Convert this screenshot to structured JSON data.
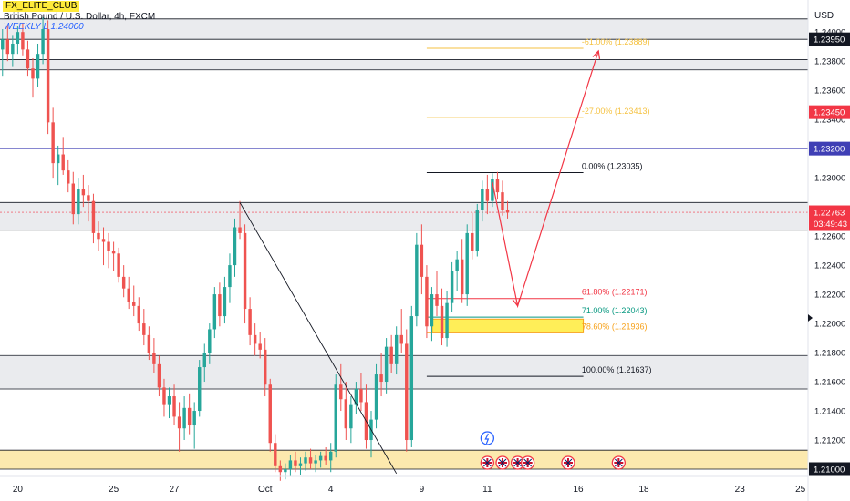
{
  "header": {
    "badge": "FX_ELITE_CLUB",
    "symbol": "British Pound / U.S. Dollar, 4h, FXCM",
    "weekly_label": "WEEKLY L 1.24000"
  },
  "currency": "USD",
  "colors": {
    "up": "#26a69a",
    "down": "#ef5350",
    "zone_gray": "#e3e4e8",
    "zone_yellow": "#fbe5a0",
    "fib_gold": "#f5c242",
    "fib_red": "#f23645",
    "fib_green": "#089981",
    "fib_orange": "#f7a21b",
    "arrow": "#f23645",
    "blue_line": "#3f3fb5"
  },
  "chart_data": {
    "type": "candlestick",
    "ylim": [
      1.2095,
      1.2422
    ],
    "y_ticks": [
      1.21,
      1.212,
      1.214,
      1.216,
      1.218,
      1.22,
      1.222,
      1.224,
      1.226,
      1.228,
      1.23,
      1.232,
      1.234,
      1.236,
      1.238,
      1.24
    ],
    "y_tick_labels": [
      "1.21000",
      "1.21200",
      "1.21400",
      "1.21600",
      "1.21800",
      "1.22000",
      "1.22200",
      "1.22400",
      "1.22600",
      "",
      "1.23000",
      "1.23200",
      "1.23400",
      "1.23600",
      "1.23800",
      "1.24000"
    ],
    "x_ticks": [
      {
        "label": "20",
        "bar": 3
      },
      {
        "label": "25",
        "bar": 22
      },
      {
        "label": "27",
        "bar": 34
      },
      {
        "label": "Oct",
        "bar": 52
      },
      {
        "label": "4",
        "bar": 65
      },
      {
        "label": "9",
        "bar": 83
      },
      {
        "label": "11",
        "bar": 96
      },
      {
        "label": "16",
        "bar": 114
      },
      {
        "label": "18",
        "bar": 127
      },
      {
        "label": "23",
        "bar": 146
      },
      {
        "label": "25",
        "bar": 158
      }
    ],
    "bars_total": 160,
    "price_tags": [
      {
        "value": 1.2395,
        "label": "1.23950",
        "color": "#131722"
      },
      {
        "value": 1.2345,
        "label": "1.23450",
        "color": "#f23645"
      },
      {
        "value": 1.232,
        "label": "1.23200",
        "color": "#3f3fb5"
      },
      {
        "value": 1.22763,
        "label": "1.22763",
        "sub": "03:49:43",
        "color": "#f23645"
      },
      {
        "value": 1.21,
        "label": "1.21000",
        "color": "#131722"
      }
    ],
    "zones": [
      {
        "top": 1.2409,
        "bottom": 1.2395,
        "kind": "gray"
      },
      {
        "top": 1.2381,
        "bottom": 1.2374,
        "kind": "gray"
      },
      {
        "top": 1.2283,
        "bottom": 1.2264,
        "kind": "gray"
      },
      {
        "top": 1.2178,
        "bottom": 1.2155,
        "kind": "gray"
      },
      {
        "top": 1.2113,
        "bottom": 1.21,
        "kind": "yellow"
      }
    ],
    "horizontal_lines": [
      {
        "value": 1.232,
        "color": "#3f3fb5"
      }
    ],
    "fib_levels": [
      {
        "label": "-61.00% (1.23889)",
        "value": 1.23889,
        "color": "#f5c242"
      },
      {
        "label": "-27.00% (1.23413)",
        "value": 1.23413,
        "color": "#f5c242"
      },
      {
        "label": "0.00% (1.23035)",
        "value": 1.23035,
        "color": "#131722"
      },
      {
        "label": "61.80% (1.22171)",
        "value": 1.22171,
        "color": "#f23645"
      },
      {
        "label": "71.00% (1.22043)",
        "value": 1.22043,
        "color": "#089981"
      },
      {
        "label": "78.60% (1.21936)",
        "value": 1.21936,
        "color": "#f7a21b"
      },
      {
        "label": "100.00% (1.21637)",
        "value": 1.21637,
        "color": "#131722"
      }
    ],
    "fib_box": {
      "top": 1.2203,
      "bottom": 1.21936
    },
    "trendline": [
      {
        "bar": 47,
        "value": 1.2283
      },
      {
        "bar": 78,
        "value": 1.2097
      }
    ],
    "projection": [
      {
        "bar": 97,
        "value": 1.2297
      },
      {
        "bar": 102,
        "value": 1.2212
      },
      {
        "bar": 118,
        "value": 1.2387
      }
    ],
    "events": [
      {
        "bar": 96,
        "kind": "lightning"
      },
      {
        "bar": 96,
        "kind": "flag"
      },
      {
        "bar": 99,
        "kind": "flag"
      },
      {
        "bar": 102,
        "kind": "flag"
      },
      {
        "bar": 104,
        "kind": "flag"
      },
      {
        "bar": 112,
        "kind": "flag"
      },
      {
        "bar": 122,
        "kind": "flag"
      }
    ],
    "candles": [
      [
        1.2388,
        1.2402,
        1.237,
        1.2395
      ],
      [
        1.2395,
        1.2405,
        1.238,
        1.2385
      ],
      [
        1.2385,
        1.2398,
        1.2376,
        1.2392
      ],
      [
        1.2392,
        1.2404,
        1.2385,
        1.24
      ],
      [
        1.24,
        1.2406,
        1.2384,
        1.2388
      ],
      [
        1.2388,
        1.2394,
        1.237,
        1.2375
      ],
      [
        1.2375,
        1.2382,
        1.2355,
        1.2368
      ],
      [
        1.2368,
        1.2392,
        1.2362,
        1.2385
      ],
      [
        1.2385,
        1.241,
        1.2378,
        1.2402
      ],
      [
        1.2402,
        1.2408,
        1.233,
        1.2338
      ],
      [
        1.2338,
        1.2348,
        1.23,
        1.231
      ],
      [
        1.231,
        1.2322,
        1.2295,
        1.2316
      ],
      [
        1.2316,
        1.2328,
        1.2302,
        1.2305
      ],
      [
        1.2305,
        1.2312,
        1.229,
        1.2296
      ],
      [
        1.2296,
        1.2304,
        1.2268,
        1.2275
      ],
      [
        1.2275,
        1.23,
        1.2268,
        1.2292
      ],
      [
        1.2292,
        1.2302,
        1.228,
        1.2288
      ],
      [
        1.2288,
        1.2295,
        1.227,
        1.2284
      ],
      [
        1.2284,
        1.2289,
        1.2255,
        1.2262
      ],
      [
        1.2262,
        1.227,
        1.225,
        1.2258
      ],
      [
        1.2258,
        1.2266,
        1.224,
        1.2256
      ],
      [
        1.2256,
        1.2262,
        1.2238,
        1.225
      ],
      [
        1.225,
        1.2256,
        1.2236,
        1.2248
      ],
      [
        1.2248,
        1.2252,
        1.2228,
        1.2232
      ],
      [
        1.2232,
        1.224,
        1.2218,
        1.2224
      ],
      [
        1.2224,
        1.2232,
        1.221,
        1.2215
      ],
      [
        1.2215,
        1.2226,
        1.2205,
        1.2212
      ],
      [
        1.2212,
        1.2218,
        1.2195,
        1.22
      ],
      [
        1.22,
        1.221,
        1.2185,
        1.2192
      ],
      [
        1.2192,
        1.2198,
        1.2175,
        1.218
      ],
      [
        1.218,
        1.219,
        1.2166,
        1.2172
      ],
      [
        1.2172,
        1.2178,
        1.215,
        1.2156
      ],
      [
        1.2156,
        1.2162,
        1.2136,
        1.2144
      ],
      [
        1.2144,
        1.2156,
        1.2135,
        1.215
      ],
      [
        1.215,
        1.2158,
        1.213,
        1.2136
      ],
      [
        1.2136,
        1.2146,
        1.2112,
        1.2128
      ],
      [
        1.2128,
        1.215,
        1.212,
        1.2142
      ],
      [
        1.2142,
        1.2152,
        1.2124,
        1.213
      ],
      [
        1.213,
        1.2146,
        1.2114,
        1.214
      ],
      [
        1.214,
        1.2175,
        1.2136,
        1.217
      ],
      [
        1.217,
        1.2186,
        1.216,
        1.218
      ],
      [
        1.218,
        1.22,
        1.2172,
        1.2196
      ],
      [
        1.2196,
        1.2225,
        1.219,
        1.222
      ],
      [
        1.222,
        1.2228,
        1.2198,
        1.2205
      ],
      [
        1.2205,
        1.2232,
        1.22,
        1.2225
      ],
      [
        1.2225,
        1.2248,
        1.2214,
        1.224
      ],
      [
        1.224,
        1.2272,
        1.2232,
        1.2266
      ],
      [
        1.2266,
        1.2284,
        1.2258,
        1.2262
      ],
      [
        1.2262,
        1.2268,
        1.22,
        1.221
      ],
      [
        1.221,
        1.2218,
        1.2185,
        1.2192
      ],
      [
        1.2192,
        1.22,
        1.2178,
        1.2186
      ],
      [
        1.2186,
        1.2194,
        1.2176,
        1.2182
      ],
      [
        1.2182,
        1.219,
        1.215,
        1.2158
      ],
      [
        1.2158,
        1.2162,
        1.2112,
        1.2118
      ],
      [
        1.2118,
        1.2124,
        1.2098,
        1.2102
      ],
      [
        1.2102,
        1.2106,
        1.2092,
        1.2098
      ],
      [
        1.2098,
        1.2104,
        1.2093,
        1.21
      ],
      [
        1.21,
        1.211,
        1.2095,
        1.2106
      ],
      [
        1.2106,
        1.2112,
        1.2098,
        1.2102
      ],
      [
        1.2102,
        1.2108,
        1.2096,
        1.2104
      ],
      [
        1.2104,
        1.2112,
        1.2099,
        1.2108
      ],
      [
        1.2108,
        1.2114,
        1.21,
        1.2104
      ],
      [
        1.2104,
        1.211,
        1.2098,
        1.2106
      ],
      [
        1.2106,
        1.2112,
        1.2101,
        1.2109
      ],
      [
        1.2109,
        1.2115,
        1.2103,
        1.2106
      ],
      [
        1.2106,
        1.2118,
        1.2098,
        1.2112
      ],
      [
        1.2112,
        1.2165,
        1.2108,
        1.2158
      ],
      [
        1.2158,
        1.2172,
        1.214,
        1.2148
      ],
      [
        1.2148,
        1.216,
        1.212,
        1.2128
      ],
      [
        1.2128,
        1.215,
        1.2118,
        1.2144
      ],
      [
        1.2144,
        1.216,
        1.2138,
        1.2155
      ],
      [
        1.2155,
        1.2166,
        1.214,
        1.2146
      ],
      [
        1.2146,
        1.2158,
        1.2114,
        1.212
      ],
      [
        1.212,
        1.214,
        1.2108,
        1.2134
      ],
      [
        1.2134,
        1.2172,
        1.2128,
        1.2165
      ],
      [
        1.2165,
        1.218,
        1.215,
        1.216
      ],
      [
        1.216,
        1.219,
        1.2152,
        1.2184
      ],
      [
        1.2184,
        1.2192,
        1.2166,
        1.2172
      ],
      [
        1.2172,
        1.2198,
        1.2165,
        1.2192
      ],
      [
        1.2192,
        1.221,
        1.218,
        1.2186
      ],
      [
        1.2186,
        1.2196,
        1.2112,
        1.212
      ],
      [
        1.212,
        1.2212,
        1.2115,
        1.2205
      ],
      [
        1.2205,
        1.2262,
        1.2198,
        1.2254
      ],
      [
        1.2254,
        1.2268,
        1.222,
        1.2232
      ],
      [
        1.2232,
        1.224,
        1.219,
        1.2198
      ],
      [
        1.2198,
        1.2225,
        1.2188,
        1.222
      ],
      [
        1.222,
        1.2236,
        1.2205,
        1.2212
      ],
      [
        1.2212,
        1.2224,
        1.2185,
        1.219
      ],
      [
        1.219,
        1.2222,
        1.2184,
        1.2214
      ],
      [
        1.2214,
        1.2242,
        1.2208,
        1.2236
      ],
      [
        1.2236,
        1.225,
        1.2222,
        1.2244
      ],
      [
        1.2244,
        1.2258,
        1.2214,
        1.222
      ],
      [
        1.222,
        1.2268,
        1.2212,
        1.2262
      ],
      [
        1.2262,
        1.2276,
        1.2244,
        1.225
      ],
      [
        1.225,
        1.2282,
        1.2246,
        1.2278
      ],
      [
        1.2278,
        1.2298,
        1.227,
        1.2292
      ],
      [
        1.2292,
        1.2302,
        1.2275,
        1.2284
      ],
      [
        1.2284,
        1.2303,
        1.228,
        1.2299
      ],
      [
        1.2299,
        1.2304,
        1.2285,
        1.229
      ],
      [
        1.229,
        1.2298,
        1.2274,
        1.2278
      ],
      [
        1.2278,
        1.2284,
        1.2272,
        1.2276
      ]
    ]
  }
}
